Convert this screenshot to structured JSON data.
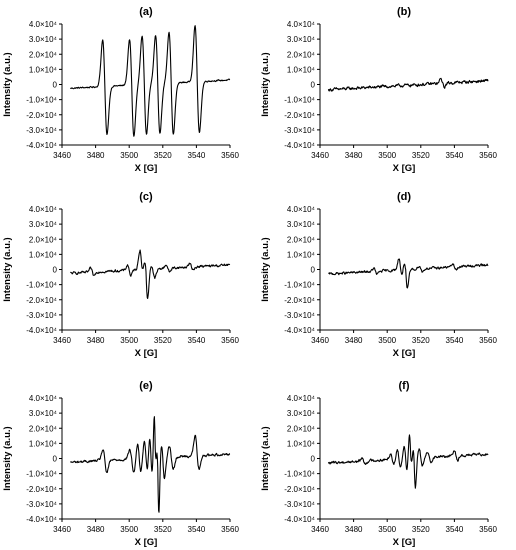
{
  "chart_data": [
    {
      "type": "line",
      "panel_label": "(a)",
      "xlabel": "X [G]",
      "ylabel": "Intensity (a.u.)",
      "xlim": [
        3460,
        3560
      ],
      "ylim": [
        -40000,
        40000
      ],
      "xticks": [
        "3460",
        "3480",
        "3500",
        "3520",
        "3540",
        "3560"
      ],
      "yticks": [
        "4.0×10⁴",
        "3.0×10⁴",
        "2.0×10⁴",
        "1.0×10⁴",
        "0",
        "-1.0×10⁴",
        "-2.0×10⁴",
        "-3.0×10⁴",
        "-4.0×10⁴"
      ],
      "series": [
        {
          "baseline": [
            [
              3465,
              -2500
            ],
            [
              3560,
              3000
            ]
          ],
          "noise": 500,
          "features": [
            {
              "x": 3485.5,
              "amp": 31000,
              "neg": 32000,
              "w": 1.3
            },
            {
              "x": 3501.5,
              "amp": 30000,
              "neg": 34000,
              "w": 1.3
            },
            {
              "x": 3509.0,
              "amp": 32000,
              "neg": 33000,
              "w": 1.3
            },
            {
              "x": 3517.0,
              "amp": 32000,
              "neg": 33000,
              "w": 1.3
            },
            {
              "x": 3525.0,
              "amp": 34000,
              "neg": 34000,
              "w": 1.3
            },
            {
              "x": 3540.5,
              "amp": 37000,
              "neg": 34000,
              "w": 1.3
            }
          ]
        }
      ]
    },
    {
      "type": "line",
      "panel_label": "(b)",
      "xlabel": "X [G]",
      "ylabel": "Intensity (a.u.)",
      "xlim": [
        3460,
        3560
      ],
      "ylim": [
        -40000,
        40000
      ],
      "xticks": [
        "3460",
        "3480",
        "3500",
        "3520",
        "3540",
        "3560"
      ],
      "yticks": [
        "4.0×10⁴",
        "3.0×10⁴",
        "2.0×10⁴",
        "1.0×10⁴",
        "0",
        "-1.0×10⁴",
        "-2.0×10⁴",
        "-3.0×10⁴",
        "-4.0×10⁴"
      ],
      "series": [
        {
          "baseline": [
            [
              3465,
              -3500
            ],
            [
              3560,
              2500
            ]
          ],
          "noise": 1100,
          "features": [
            {
              "x": 3533.0,
              "amp": 3000,
              "neg": 2500,
              "w": 1.0
            }
          ]
        }
      ]
    },
    {
      "type": "line",
      "panel_label": "(c)",
      "xlabel": "X [G]",
      "ylabel": "Intensity (a.u.)",
      "xlim": [
        3460,
        3560
      ],
      "ylim": [
        -40000,
        40000
      ],
      "xticks": [
        "3460",
        "3480",
        "3500",
        "3520",
        "3540",
        "3560"
      ],
      "yticks": [
        "4.0×10⁴",
        "3.0×10⁴",
        "2.0×10⁴",
        "1.0×10⁴",
        "0",
        "-1.0×10⁴",
        "-2.0×10⁴",
        "-3.0×10⁴",
        "-4.0×10⁴"
      ],
      "series": [
        {
          "baseline": [
            [
              3465,
              -2500
            ],
            [
              3560,
              3000
            ]
          ],
          "noise": 900,
          "features": [
            {
              "x": 3478.0,
              "amp": 2500,
              "neg": 2500,
              "w": 1.0
            },
            {
              "x": 3500.0,
              "amp": 3500,
              "neg": 3500,
              "w": 1.0
            },
            {
              "x": 3507.5,
              "amp": 13000,
              "neg": 6000,
              "w": 1.1
            },
            {
              "x": 3510.0,
              "amp": 10000,
              "neg": 20000,
              "w": 1.0
            },
            {
              "x": 3514.0,
              "amp": 3000,
              "neg": 6000,
              "w": 1.2
            },
            {
              "x": 3523.0,
              "amp": 2500,
              "neg": 2500,
              "w": 1.0
            },
            {
              "x": 3537.0,
              "amp": 2500,
              "neg": 2000,
              "w": 1.0
            }
          ]
        }
      ]
    },
    {
      "type": "line",
      "panel_label": "(d)",
      "xlabel": "X [G]",
      "ylabel": "Intensity (a.u.)",
      "xlim": [
        3460,
        3560
      ],
      "ylim": [
        -40000,
        40000
      ],
      "xticks": [
        "3460",
        "3480",
        "3500",
        "3520",
        "3540",
        "3560"
      ],
      "yticks": [
        "4.0×10⁴",
        "3.0×10⁴",
        "2.0×10⁴",
        "1.0×10⁴",
        "0",
        "-1.0×10⁴",
        "-2.0×10⁴",
        "-3.0×10⁴",
        "-4.0×10⁴"
      ],
      "series": [
        {
          "baseline": [
            [
              3465,
              -3000
            ],
            [
              3560,
              3000
            ]
          ],
          "noise": 900,
          "features": [
            {
              "x": 3493.0,
              "amp": 2000,
              "neg": 2000,
              "w": 1.0
            },
            {
              "x": 3508.0,
              "amp": 8000,
              "neg": 5000,
              "w": 1.0
            },
            {
              "x": 3511.0,
              "amp": 6000,
              "neg": 13000,
              "w": 1.0
            },
            {
              "x": 3520.0,
              "amp": 2000,
              "neg": 2000,
              "w": 1.0
            },
            {
              "x": 3540.0,
              "amp": 2000,
              "neg": 2000,
              "w": 1.0
            }
          ]
        }
      ]
    },
    {
      "type": "line",
      "panel_label": "(e)",
      "xlabel": "X [G]",
      "ylabel": "Intensity (a.u.)",
      "xlim": [
        3460,
        3560
      ],
      "ylim": [
        -40000,
        40000
      ],
      "xticks": [
        "3460",
        "3480",
        "3500",
        "3520",
        "3540",
        "3560"
      ],
      "yticks": [
        "4.0×10⁴",
        "3.0×10⁴",
        "2.0×10⁴",
        "1.0×10⁴",
        "0",
        "-1.0×10⁴",
        "-2.0×10⁴",
        "-3.0×10⁴",
        "-4.0×10⁴"
      ],
      "series": [
        {
          "baseline": [
            [
              3465,
              -2500
            ],
            [
              3560,
              3000
            ]
          ],
          "noise": 900,
          "features": [
            {
              "x": 3485.5,
              "amp": 7000,
              "neg": 8000,
              "w": 1.2
            },
            {
              "x": 3501.5,
              "amp": 6000,
              "neg": 9000,
              "w": 1.2
            },
            {
              "x": 3506.0,
              "amp": 10000,
              "neg": 9000,
              "w": 1.0
            },
            {
              "x": 3510.0,
              "amp": 12000,
              "neg": 10000,
              "w": 1.0
            },
            {
              "x": 3513.0,
              "amp": 16000,
              "neg": 15000,
              "w": 0.9
            },
            {
              "x": 3515.5,
              "amp": 33000,
              "neg": 20000,
              "w": 0.7
            },
            {
              "x": 3517.0,
              "amp": 22000,
              "neg": 38000,
              "w": 0.7
            },
            {
              "x": 3520.0,
              "amp": 9000,
              "neg": 14000,
              "w": 1.0
            },
            {
              "x": 3525.0,
              "amp": 7000,
              "neg": 8000,
              "w": 1.2
            },
            {
              "x": 3540.5,
              "amp": 13000,
              "neg": 9000,
              "w": 1.2
            }
          ]
        }
      ]
    },
    {
      "type": "line",
      "panel_label": "(f)",
      "xlabel": "X [G]",
      "ylabel": "Intensity (a.u.)",
      "xlim": [
        3460,
        3560
      ],
      "ylim": [
        -40000,
        40000
      ],
      "xticks": [
        "3460",
        "3480",
        "3500",
        "3520",
        "3540",
        "3560"
      ],
      "yticks": [
        "4.0×10⁴",
        "3.0×10⁴",
        "2.0×10⁴",
        "1.0×10⁴",
        "0",
        "-1.0×10⁴",
        "-2.0×10⁴",
        "-3.0×10⁴",
        "-4.0×10⁴"
      ],
      "series": [
        {
          "baseline": [
            [
              3465,
              -3000
            ],
            [
              3560,
              3000
            ]
          ],
          "noise": 1000,
          "features": [
            {
              "x": 3486.0,
              "amp": 2000,
              "neg": 2000,
              "w": 1.0
            },
            {
              "x": 3503.0,
              "amp": 4000,
              "neg": 3000,
              "w": 1.0
            },
            {
              "x": 3507.0,
              "amp": 6000,
              "neg": 5000,
              "w": 1.0
            },
            {
              "x": 3511.0,
              "amp": 9000,
              "neg": 8000,
              "w": 0.9
            },
            {
              "x": 3514.0,
              "amp": 17000,
              "neg": 10000,
              "w": 0.8
            },
            {
              "x": 3516.0,
              "amp": 12000,
              "neg": 20000,
              "w": 0.8
            },
            {
              "x": 3520.0,
              "amp": 6000,
              "neg": 5000,
              "w": 1.0
            },
            {
              "x": 3525.0,
              "amp": 3000,
              "neg": 3000,
              "w": 1.0
            },
            {
              "x": 3541.0,
              "amp": 4000,
              "neg": 3000,
              "w": 1.0
            }
          ]
        }
      ]
    }
  ]
}
